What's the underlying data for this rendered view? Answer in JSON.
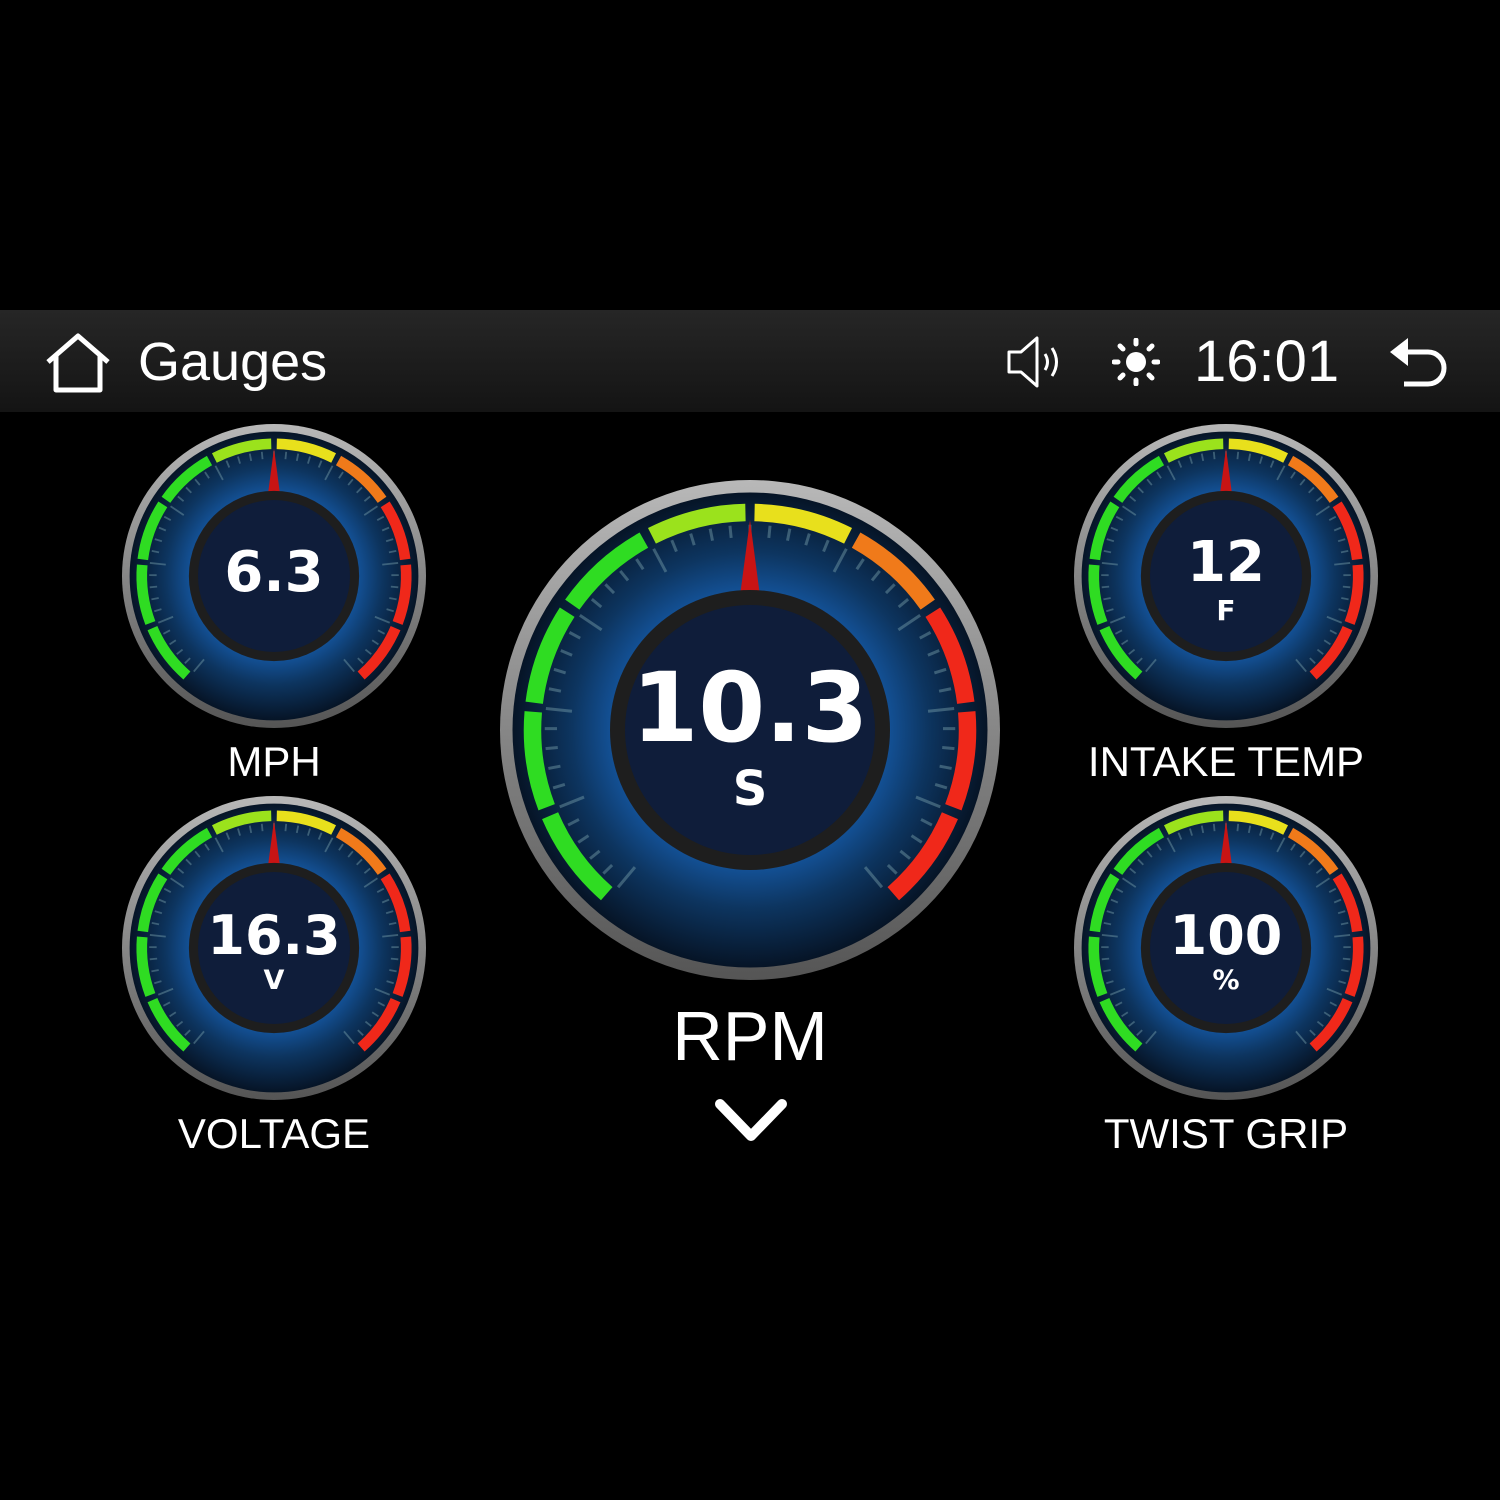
{
  "header": {
    "title": "Gauges",
    "time": "16:01",
    "icons": [
      "home-icon",
      "volume-icon",
      "brightness-icon",
      "back-icon"
    ]
  },
  "gauges": {
    "mph": {
      "label": "MPH",
      "value": "6.3",
      "unit": ""
    },
    "voltage": {
      "label": "VOLTAGE",
      "value": "16.3",
      "unit": "V"
    },
    "rpm": {
      "label": "RPM",
      "value": "10.3",
      "unit": "S"
    },
    "intake": {
      "label": "INTAKE TEMP",
      "value": "12",
      "unit": "F"
    },
    "twist": {
      "label": "TWIST GRIP",
      "value": "100",
      "unit": "%"
    }
  },
  "colors": {
    "green": "#2fdc22",
    "yellow": "#e8e01c",
    "orange": "#f07a1a",
    "red": "#f0281a",
    "needle": "#c81414",
    "face": "#0f1d3a"
  },
  "more_icon": "chevron-down-icon"
}
